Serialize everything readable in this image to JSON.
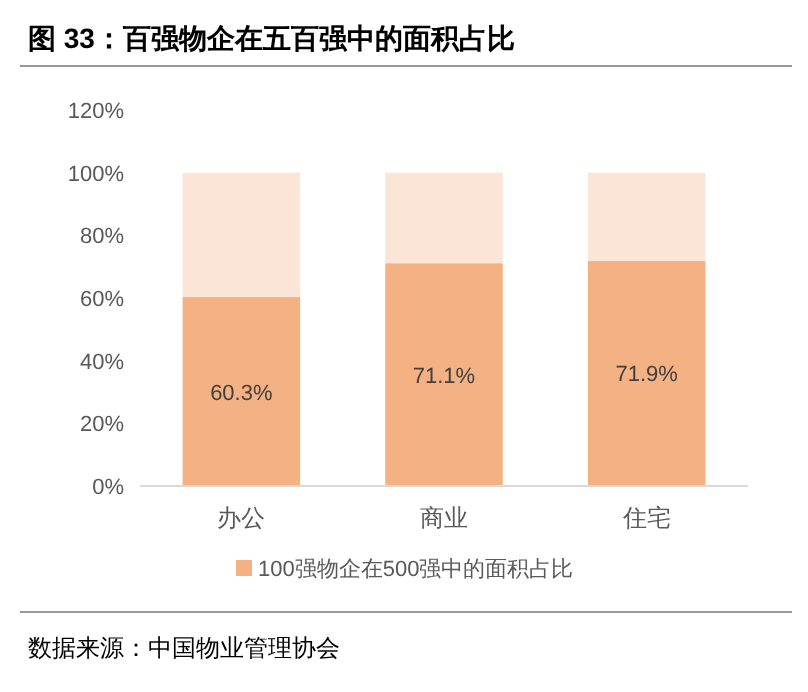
{
  "chart_data": {
    "type": "bar",
    "title": "图 33：百强物企在五百强中的面积占比",
    "categories": [
      "办公",
      "商业",
      "住宅"
    ],
    "stacked": true,
    "series": [
      {
        "name": "100强物企在500强中的面积占比",
        "color": "#f4b183",
        "values": [
          60.3,
          71.1,
          71.9
        ],
        "value_labels": [
          "60.3%",
          "71.1%",
          "71.9%"
        ]
      },
      {
        "color": "#fbe5d6",
        "values": [
          39.7,
          28.9,
          28.1
        ]
      }
    ],
    "ylim": [
      0,
      120
    ],
    "yticks": [
      {
        "value": 0,
        "label": "0%"
      },
      {
        "value": 20,
        "label": "20%"
      },
      {
        "value": 40,
        "label": "40%"
      },
      {
        "value": 60,
        "label": "60%"
      },
      {
        "value": 80,
        "label": "80%"
      },
      {
        "value": 100,
        "label": "100%"
      },
      {
        "value": 120,
        "label": "120%"
      }
    ],
    "grid": false,
    "legend": "bottom",
    "annotations": [
      "数据来源：中国物业管理协会"
    ]
  }
}
